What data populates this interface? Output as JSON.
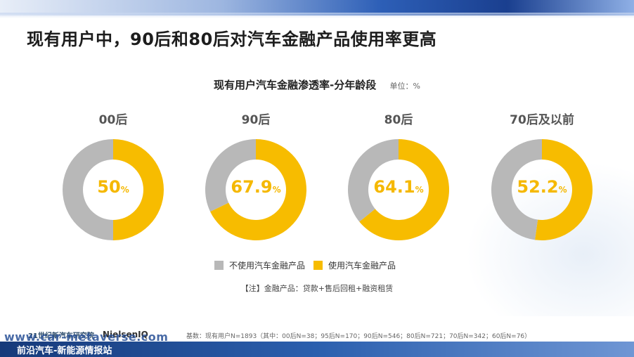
{
  "page": {
    "title": "现有用户中，90后和80后对汽车金融产品使用率更高"
  },
  "chart_data": {
    "type": "pie",
    "title": "现有用户汽车金融渗透率-分年龄段",
    "unit_label": "单位：%",
    "categories": [
      "00后",
      "90后",
      "80后",
      "70后及以前"
    ],
    "series": [
      {
        "name": "使用汽车金融产品",
        "values": [
          50,
          67.9,
          64.1,
          52.2
        ]
      },
      {
        "name": "不使用汽车金融产品",
        "values": [
          50,
          32.1,
          35.9,
          47.8
        ]
      }
    ],
    "value_labels": [
      "50",
      "67.9",
      "64.1",
      "52.2"
    ],
    "percent_sign": "%",
    "colors": {
      "used": "#f7bc00",
      "not_used": "#b8b8b8"
    },
    "legend_position": "bottom"
  },
  "legend": {
    "not_used_label": "不使用汽车金融产品",
    "used_label": "使用汽车金融产品"
  },
  "note": "【注】金融产品：贷款+售后回租+融资租赁",
  "base_note": "基数：现有用户N=1893（其中：00后N=38；95后N=170；90后N=546；80后N=721；70后N=342；60后N=76）",
  "logos": {
    "institute": "21世纪新汽车研究院",
    "nielsen": "NielsenIQ"
  },
  "watermark": {
    "url": "www.car-metaverse.com",
    "site": "前沿汽车-新能源情报站"
  }
}
